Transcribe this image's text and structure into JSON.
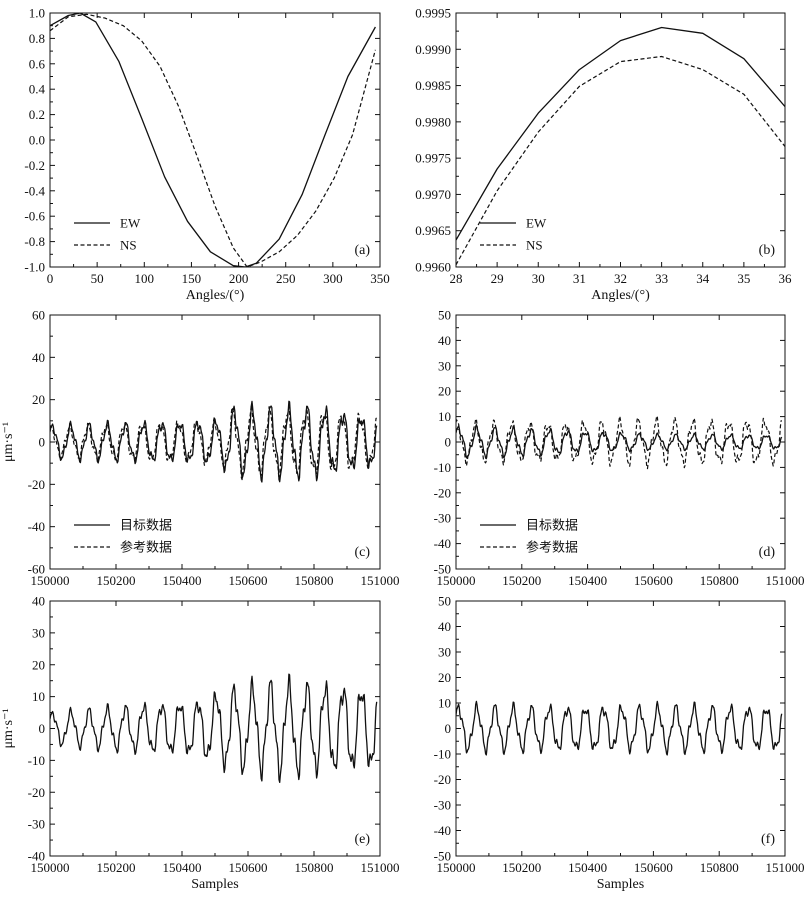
{
  "chart_data": [
    {
      "panel": "(a)",
      "type": "line",
      "xlabel": "Angles/(°)",
      "ylabel": "",
      "xlim": [
        0,
        360
      ],
      "ylim": [
        -1.0,
        1.0
      ],
      "xticks": [
        "0",
        "50",
        "100",
        "150",
        "200",
        "250",
        "300",
        "350"
      ],
      "yticks": [
        "1.0",
        "0.8",
        "0.6",
        "0.4",
        "0.2",
        "0.0",
        "-0.2",
        "-0.4",
        "-0.6",
        "-0.8",
        "-1.0"
      ],
      "legend_position": "bottom-left",
      "series": [
        {
          "name": "EW",
          "style": "solid",
          "x": [
            0,
            20,
            33,
            50,
            75,
            100,
            125,
            150,
            175,
            200,
            213,
            225,
            250,
            275,
            300,
            325,
            355
          ],
          "y": [
            0.9,
            0.98,
            1.0,
            0.93,
            0.62,
            0.17,
            -0.29,
            -0.64,
            -0.88,
            -0.99,
            -1.0,
            -0.97,
            -0.78,
            -0.43,
            0.04,
            0.5,
            0.89
          ]
        },
        {
          "name": "NS",
          "style": "dashed",
          "x": [
            0,
            20,
            40,
            60,
            80,
            100,
            120,
            140,
            160,
            180,
            200,
            215,
            230,
            250,
            270,
            290,
            310,
            330,
            355
          ],
          "y": [
            0.86,
            0.97,
            0.99,
            0.96,
            0.9,
            0.78,
            0.58,
            0.27,
            -0.12,
            -0.52,
            -0.85,
            -1.0,
            -0.96,
            -0.88,
            -0.75,
            -0.56,
            -0.3,
            0.04,
            0.71
          ]
        }
      ]
    },
    {
      "panel": "(b)",
      "type": "line",
      "xlabel": "Angles/(°)",
      "ylabel": "",
      "xlim": [
        28,
        36
      ],
      "ylim": [
        0.996,
        0.9995
      ],
      "xticks": [
        "28",
        "29",
        "30",
        "31",
        "32",
        "33",
        "34",
        "35",
        "36"
      ],
      "yticks": [
        "0.9995",
        "0.9990",
        "0.9985",
        "0.9980",
        "0.9975",
        "0.9970",
        "0.9965",
        "0.9960"
      ],
      "legend_position": "bottom-left",
      "series": [
        {
          "name": "EW",
          "style": "solid",
          "x": [
            28,
            29,
            30,
            31,
            32,
            33,
            34,
            35,
            36
          ],
          "y": [
            0.99637,
            0.99735,
            0.99812,
            0.99872,
            0.99912,
            0.9993,
            0.99922,
            0.99887,
            0.99821
          ]
        },
        {
          "name": "NS",
          "style": "dashed",
          "x": [
            28,
            29,
            30,
            31,
            32,
            33,
            34,
            35,
            36
          ],
          "y": [
            0.99603,
            0.99705,
            0.99786,
            0.99849,
            0.99883,
            0.9989,
            0.99872,
            0.99838,
            0.99766
          ]
        }
      ]
    },
    {
      "panel": "(c)",
      "type": "line",
      "xlabel": "",
      "ylabel": "μm·s⁻¹",
      "xlim": [
        150000,
        151000
      ],
      "ylim": [
        -60,
        60
      ],
      "xticks": [
        "150000",
        "150200",
        "150400",
        "150600",
        "150800",
        "151000"
      ],
      "yticks": [
        "60",
        "40",
        "20",
        "0",
        "-20",
        "-40",
        "-60"
      ],
      "legend_position": "bottom-left",
      "series": [
        {
          "name": "目标数据",
          "style": "solid",
          "signal": {
            "period": 55,
            "segments": [
              [
                150000,
                8
              ],
              [
                150200,
                9
              ],
              [
                150520,
                11
              ],
              [
                150540,
                16
              ],
              [
                150800,
                17
              ],
              [
                150990,
                12
              ]
            ]
          }
        },
        {
          "name": "参考数据",
          "style": "dashed",
          "signal": {
            "period": 55,
            "segments": [
              [
                150000,
                7
              ],
              [
                150200,
                9
              ],
              [
                150520,
                10
              ],
              [
                150540,
                15
              ],
              [
                150800,
                16
              ],
              [
                150990,
                12
              ]
            ]
          }
        }
      ]
    },
    {
      "panel": "(d)",
      "type": "line",
      "xlabel": "",
      "ylabel": "",
      "xlim": [
        150000,
        151000
      ],
      "ylim": [
        -50,
        50
      ],
      "xticks": [
        "150000",
        "150200",
        "150400",
        "150600",
        "150800",
        "151000"
      ],
      "yticks": [
        "50",
        "40",
        "30",
        "20",
        "10",
        "0",
        "-10",
        "-20",
        "-30",
        "-40",
        "-50"
      ],
      "legend_position": "bottom-left",
      "series": [
        {
          "name": "目标数据",
          "style": "solid",
          "signal": {
            "period": 55,
            "segments": [
              [
                150000,
                6
              ],
              [
                150300,
                5
              ],
              [
                150600,
                3
              ],
              [
                150990,
                3
              ]
            ]
          }
        },
        {
          "name": "参考数据",
          "style": "dashed",
          "signal": {
            "period": 55,
            "segments": [
              [
                150000,
                8
              ],
              [
                150300,
                8
              ],
              [
                150600,
                9
              ],
              [
                150990,
                9
              ]
            ]
          }
        }
      ]
    },
    {
      "panel": "(e)",
      "type": "line",
      "xlabel": "Samples",
      "ylabel": "μm·s⁻¹",
      "xlim": [
        150000,
        151000
      ],
      "ylim": [
        -40,
        40
      ],
      "xticks": [
        "150000",
        "150200",
        "150400",
        "150600",
        "150800",
        "151000"
      ],
      "yticks": [
        "40",
        "30",
        "20",
        "10",
        "0",
        "-10",
        "-20",
        "-30",
        "-40"
      ],
      "series": [
        {
          "name": "",
          "style": "solid",
          "signal": {
            "period": 55,
            "segments": [
              [
                150000,
                5
              ],
              [
                150200,
                7
              ],
              [
                150450,
                9
              ],
              [
                150540,
                13
              ],
              [
                150700,
                15
              ],
              [
                150990,
                13
              ]
            ]
          }
        }
      ]
    },
    {
      "panel": "(f)",
      "type": "line",
      "xlabel": "Samples",
      "ylabel": "",
      "xlim": [
        150000,
        151000
      ],
      "ylim": [
        -50,
        50
      ],
      "xticks": [
        "150000",
        "150200",
        "150400",
        "150600",
        "150800",
        "151000"
      ],
      "yticks": [
        "50",
        "40",
        "30",
        "20",
        "10",
        "0",
        "-10",
        "-20",
        "-30",
        "-40",
        "-50"
      ],
      "series": [
        {
          "name": "",
          "style": "solid",
          "signal": {
            "period": 55,
            "segments": [
              [
                150000,
                9
              ],
              [
                150300,
                9
              ],
              [
                150600,
                9
              ],
              [
                150990,
                9
              ]
            ]
          }
        }
      ]
    }
  ]
}
